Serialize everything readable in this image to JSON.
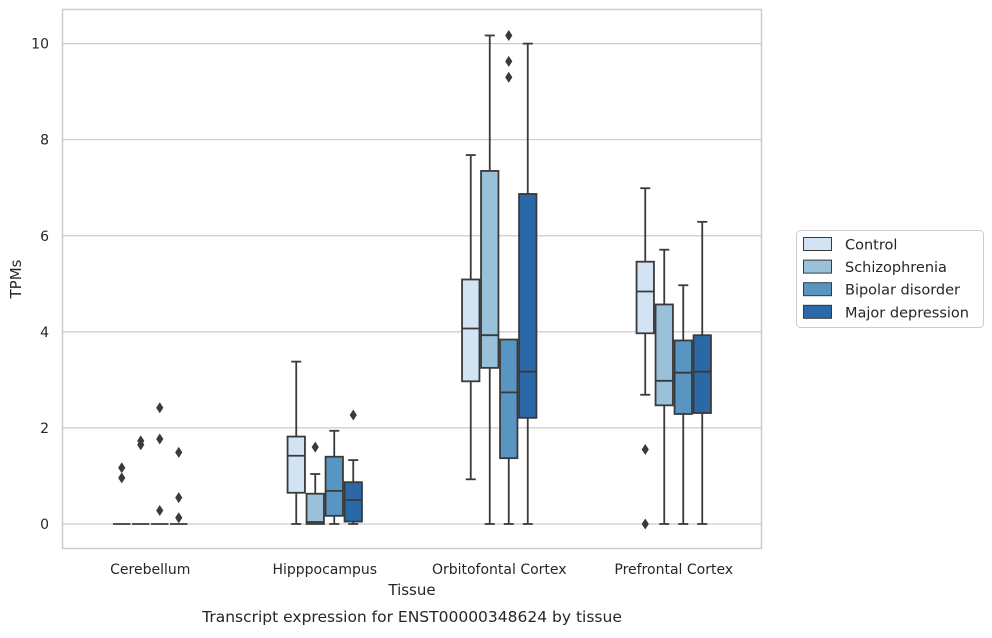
{
  "chart_data": {
    "type": "box",
    "title": "",
    "caption": "Transcript expression for ENST00000348624 by tissue",
    "xlabel": "Tissue",
    "ylabel": "TPMs",
    "ylim": [
      -0.5,
      10.7
    ],
    "yticks": [
      0,
      2,
      4,
      6,
      8,
      10
    ],
    "grid": "horizontal",
    "legend_position": "right",
    "categories": [
      "Cerebellum",
      "Hipppocampus",
      "Orbitofontal Cortex",
      "Prefrontal Cortex"
    ],
    "series": [
      {
        "name": "Control",
        "color": "#d2e3f3",
        "boxes": [
          {
            "whisker_low": 0,
            "q1": 0,
            "median": 0,
            "q3": 0,
            "whisker_high": 0,
            "outliers": [
              1.17,
              0.96
            ]
          },
          {
            "whisker_low": 0,
            "q1": 0.65,
            "median": 1.42,
            "q3": 1.82,
            "whisker_high": 3.38,
            "outliers": []
          },
          {
            "whisker_low": 0.93,
            "q1": 2.97,
            "median": 4.07,
            "q3": 5.09,
            "whisker_high": 7.68,
            "outliers": []
          },
          {
            "whisker_low": 2.69,
            "q1": 3.97,
            "median": 4.84,
            "q3": 5.46,
            "whisker_high": 6.99,
            "outliers": [
              1.55,
              0.0
            ]
          }
        ]
      },
      {
        "name": "Schizophrenia",
        "color": "#9ac1da",
        "boxes": [
          {
            "whisker_low": 0,
            "q1": 0,
            "median": 0,
            "q3": 0,
            "whisker_high": 0,
            "outliers": [
              1.73,
              1.65
            ]
          },
          {
            "whisker_low": 0,
            "q1": 0,
            "median": 0.04,
            "q3": 0.63,
            "whisker_high": 1.04,
            "outliers": [
              1.6
            ]
          },
          {
            "whisker_low": 0,
            "q1": 3.25,
            "median": 3.93,
            "q3": 7.35,
            "whisker_high": 10.17,
            "outliers": []
          },
          {
            "whisker_low": 0,
            "q1": 2.47,
            "median": 2.98,
            "q3": 4.57,
            "whisker_high": 5.71,
            "outliers": []
          }
        ]
      },
      {
        "name": "Bipolar disorder",
        "color": "#5895c2",
        "boxes": [
          {
            "whisker_low": 0,
            "q1": 0,
            "median": 0,
            "q3": 0,
            "whisker_high": 0,
            "outliers": [
              2.42,
              1.77,
              0.28
            ]
          },
          {
            "whisker_low": 0,
            "q1": 0.17,
            "median": 0.69,
            "q3": 1.4,
            "whisker_high": 1.94,
            "outliers": []
          },
          {
            "whisker_low": 0,
            "q1": 1.37,
            "median": 2.74,
            "q3": 3.84,
            "whisker_high": 3.84,
            "outliers": [
              10.17,
              9.63,
              9.3
            ]
          },
          {
            "whisker_low": 0,
            "q1": 2.29,
            "median": 3.15,
            "q3": 3.82,
            "whisker_high": 4.97,
            "outliers": []
          }
        ]
      },
      {
        "name": "Major depression",
        "color": "#2a68a8",
        "boxes": [
          {
            "whisker_low": 0,
            "q1": 0,
            "median": 0,
            "q3": 0,
            "whisker_high": 0,
            "outliers": [
              1.49,
              0.55,
              0.13
            ]
          },
          {
            "whisker_low": 0,
            "q1": 0.05,
            "median": 0.5,
            "q3": 0.87,
            "whisker_high": 1.33,
            "outliers": [
              2.27
            ]
          },
          {
            "whisker_low": 0,
            "q1": 2.21,
            "median": 3.17,
            "q3": 6.87,
            "whisker_high": 10.0,
            "outliers": []
          },
          {
            "whisker_low": 0,
            "q1": 2.31,
            "median": 3.17,
            "q3": 3.93,
            "whisker_high": 6.29,
            "outliers": []
          }
        ]
      }
    ]
  }
}
